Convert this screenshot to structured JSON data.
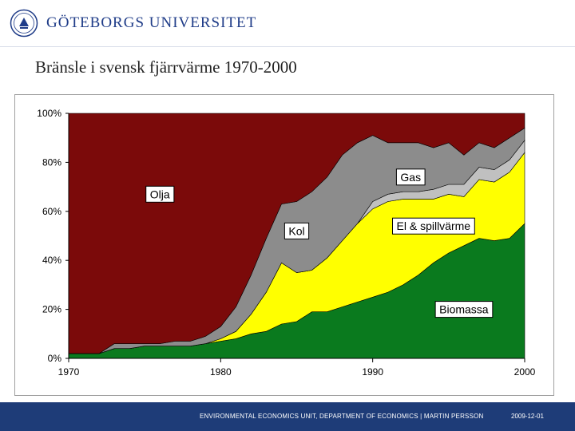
{
  "header": {
    "org_name": "GÖTEBORGS UNIVERSITET",
    "logo_icon": "university-seal-icon"
  },
  "slide": {
    "title": "Bränsle i svensk fjärrvärme 1970-2000"
  },
  "footer": {
    "text": "ENVIRONMENTAL ECONOMICS UNIT, DEPARTMENT OF ECONOMICS | MARTIN PERSSON",
    "date": "2009-12-01",
    "background_color": "#1e3c78"
  },
  "chart_data": {
    "type": "area",
    "stacked": true,
    "percent_axis": true,
    "x": [
      1970,
      1971,
      1972,
      1973,
      1974,
      1975,
      1976,
      1977,
      1978,
      1979,
      1980,
      1981,
      1982,
      1983,
      1984,
      1985,
      1986,
      1987,
      1988,
      1989,
      1990,
      1991,
      1992,
      1993,
      1994,
      1995,
      1996,
      1997,
      1998,
      1999,
      2000
    ],
    "x_ticks": [
      1970,
      1980,
      1990,
      2000
    ],
    "x_tick_labels": [
      "1970",
      "1980",
      "1990",
      "2000"
    ],
    "ylim": [
      0,
      100
    ],
    "y_ticks": [
      0,
      20,
      40,
      60,
      80,
      100
    ],
    "y_tick_labels": [
      "0%",
      "20%",
      "40%",
      "60%",
      "80%",
      "100%"
    ],
    "series": [
      {
        "name": "Biomassa",
        "color": "#0a7a1e",
        "values": [
          2,
          2,
          2,
          4,
          4,
          5,
          5,
          5,
          5,
          6,
          7,
          8,
          10,
          11,
          14,
          15,
          19,
          19,
          21,
          23,
          25,
          27,
          30,
          34,
          39,
          43,
          46,
          49,
          48,
          49,
          55
        ]
      },
      {
        "name": "El & spillvärme",
        "color": "#ffff00",
        "values": [
          0,
          0,
          0,
          0,
          0,
          0,
          0,
          0,
          0,
          0,
          1,
          3,
          8,
          16,
          25,
          20,
          17,
          22,
          27,
          32,
          36,
          37,
          35,
          31,
          26,
          24,
          20,
          24,
          24,
          27,
          29
        ]
      },
      {
        "name": "Gas",
        "color": "#c0c0c0",
        "values": [
          0,
          0,
          0,
          0,
          0,
          0,
          0,
          0,
          0,
          0,
          0,
          0,
          0,
          0,
          0,
          0,
          0,
          0,
          0,
          0,
          3,
          3,
          3,
          3,
          4,
          4,
          5,
          5,
          5,
          5,
          5
        ]
      },
      {
        "name": "Kol",
        "color": "#8c8c8c",
        "values": [
          0,
          0,
          0,
          2,
          2,
          1,
          1,
          2,
          2,
          3,
          5,
          10,
          16,
          22,
          24,
          29,
          32,
          33,
          35,
          33,
          27,
          21,
          20,
          20,
          17,
          17,
          12,
          10,
          9,
          9,
          5
        ]
      },
      {
        "name": "Olja",
        "color": "#7b0a0a",
        "values": [
          98,
          98,
          98,
          94,
          94,
          94,
          94,
          93,
          93,
          91,
          87,
          79,
          66,
          51,
          37,
          36,
          32,
          26,
          17,
          12,
          9,
          12,
          12,
          12,
          14,
          12,
          17,
          12,
          14,
          10,
          6
        ]
      }
    ],
    "labels": [
      {
        "series": "Olja",
        "text": "Olja",
        "x": 1976,
        "y": 67
      },
      {
        "series": "Kol",
        "text": "Kol",
        "x": 1985,
        "y": 52
      },
      {
        "series": "Gas",
        "text": "Gas",
        "x": 1992.5,
        "y": 74
      },
      {
        "series": "El & spillvärme",
        "text": "El & spillvärme",
        "x": 1994,
        "y": 54
      },
      {
        "series": "Biomassa",
        "text": "Biomassa",
        "x": 1996,
        "y": 20
      }
    ],
    "plot_background": "#ffffff",
    "grid": false,
    "legend": "none"
  }
}
